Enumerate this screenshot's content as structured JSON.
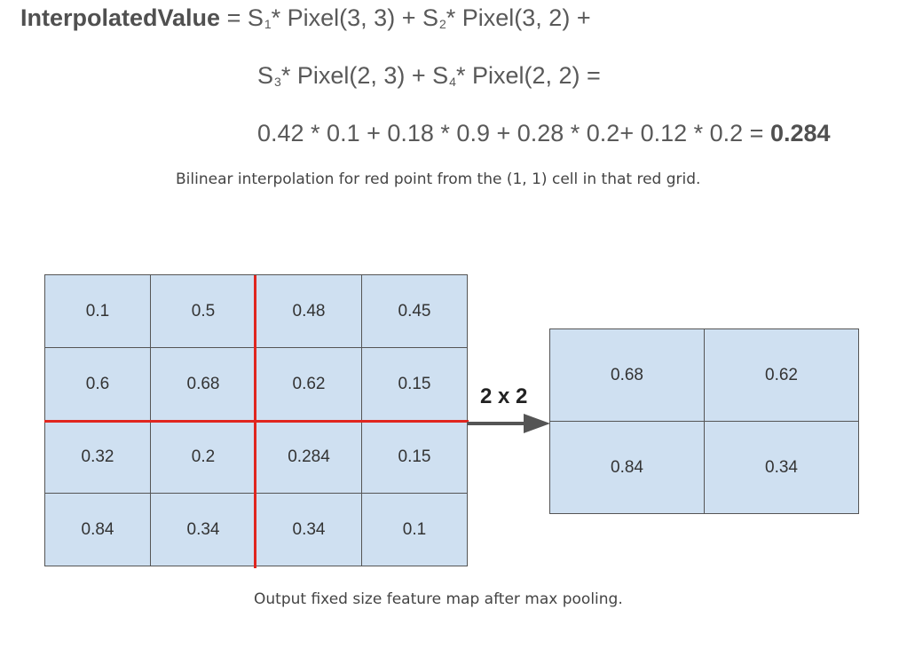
{
  "equation": {
    "lhs": "InterpolatedValue",
    "line1_rest": " = S",
    "s1_sub": "1",
    "term1": "* Pixel(3, 3) + S",
    "s2_sub": "2",
    "term2": "* Pixel(3, 2) +",
    "line2_s": "S",
    "s3_sub": "3",
    "term3": "* Pixel(2, 3) + S",
    "s4_sub": "4",
    "term4": "* Pixel(2, 2)  =",
    "line3": "0.42 * 0.1 + 0.18 * 0.9 + 0.28 * 0.2+ 0.12 * 0.2 = ",
    "result": "0.284"
  },
  "caption_top": "Bilinear interpolation for red point from the (1, 1) cell in that red grid.",
  "caption_bottom": "Output fixed size feature map after max pooling.",
  "input_grid": [
    [
      "0.1",
      "0.5",
      "0.48",
      "0.45"
    ],
    [
      "0.6",
      "0.68",
      "0.62",
      "0.15"
    ],
    [
      "0.32",
      "0.2",
      "0.284",
      "0.15"
    ],
    [
      "0.84",
      "0.34",
      "0.34",
      "0.1"
    ]
  ],
  "output_grid": [
    [
      "0.68",
      "0.62"
    ],
    [
      "0.84",
      "0.34"
    ]
  ],
  "arrow_label": "2 x 2",
  "colors": {
    "cell_fill": "#cfe0f1",
    "red_grid": "#e0261f",
    "arrow": "#555555"
  }
}
